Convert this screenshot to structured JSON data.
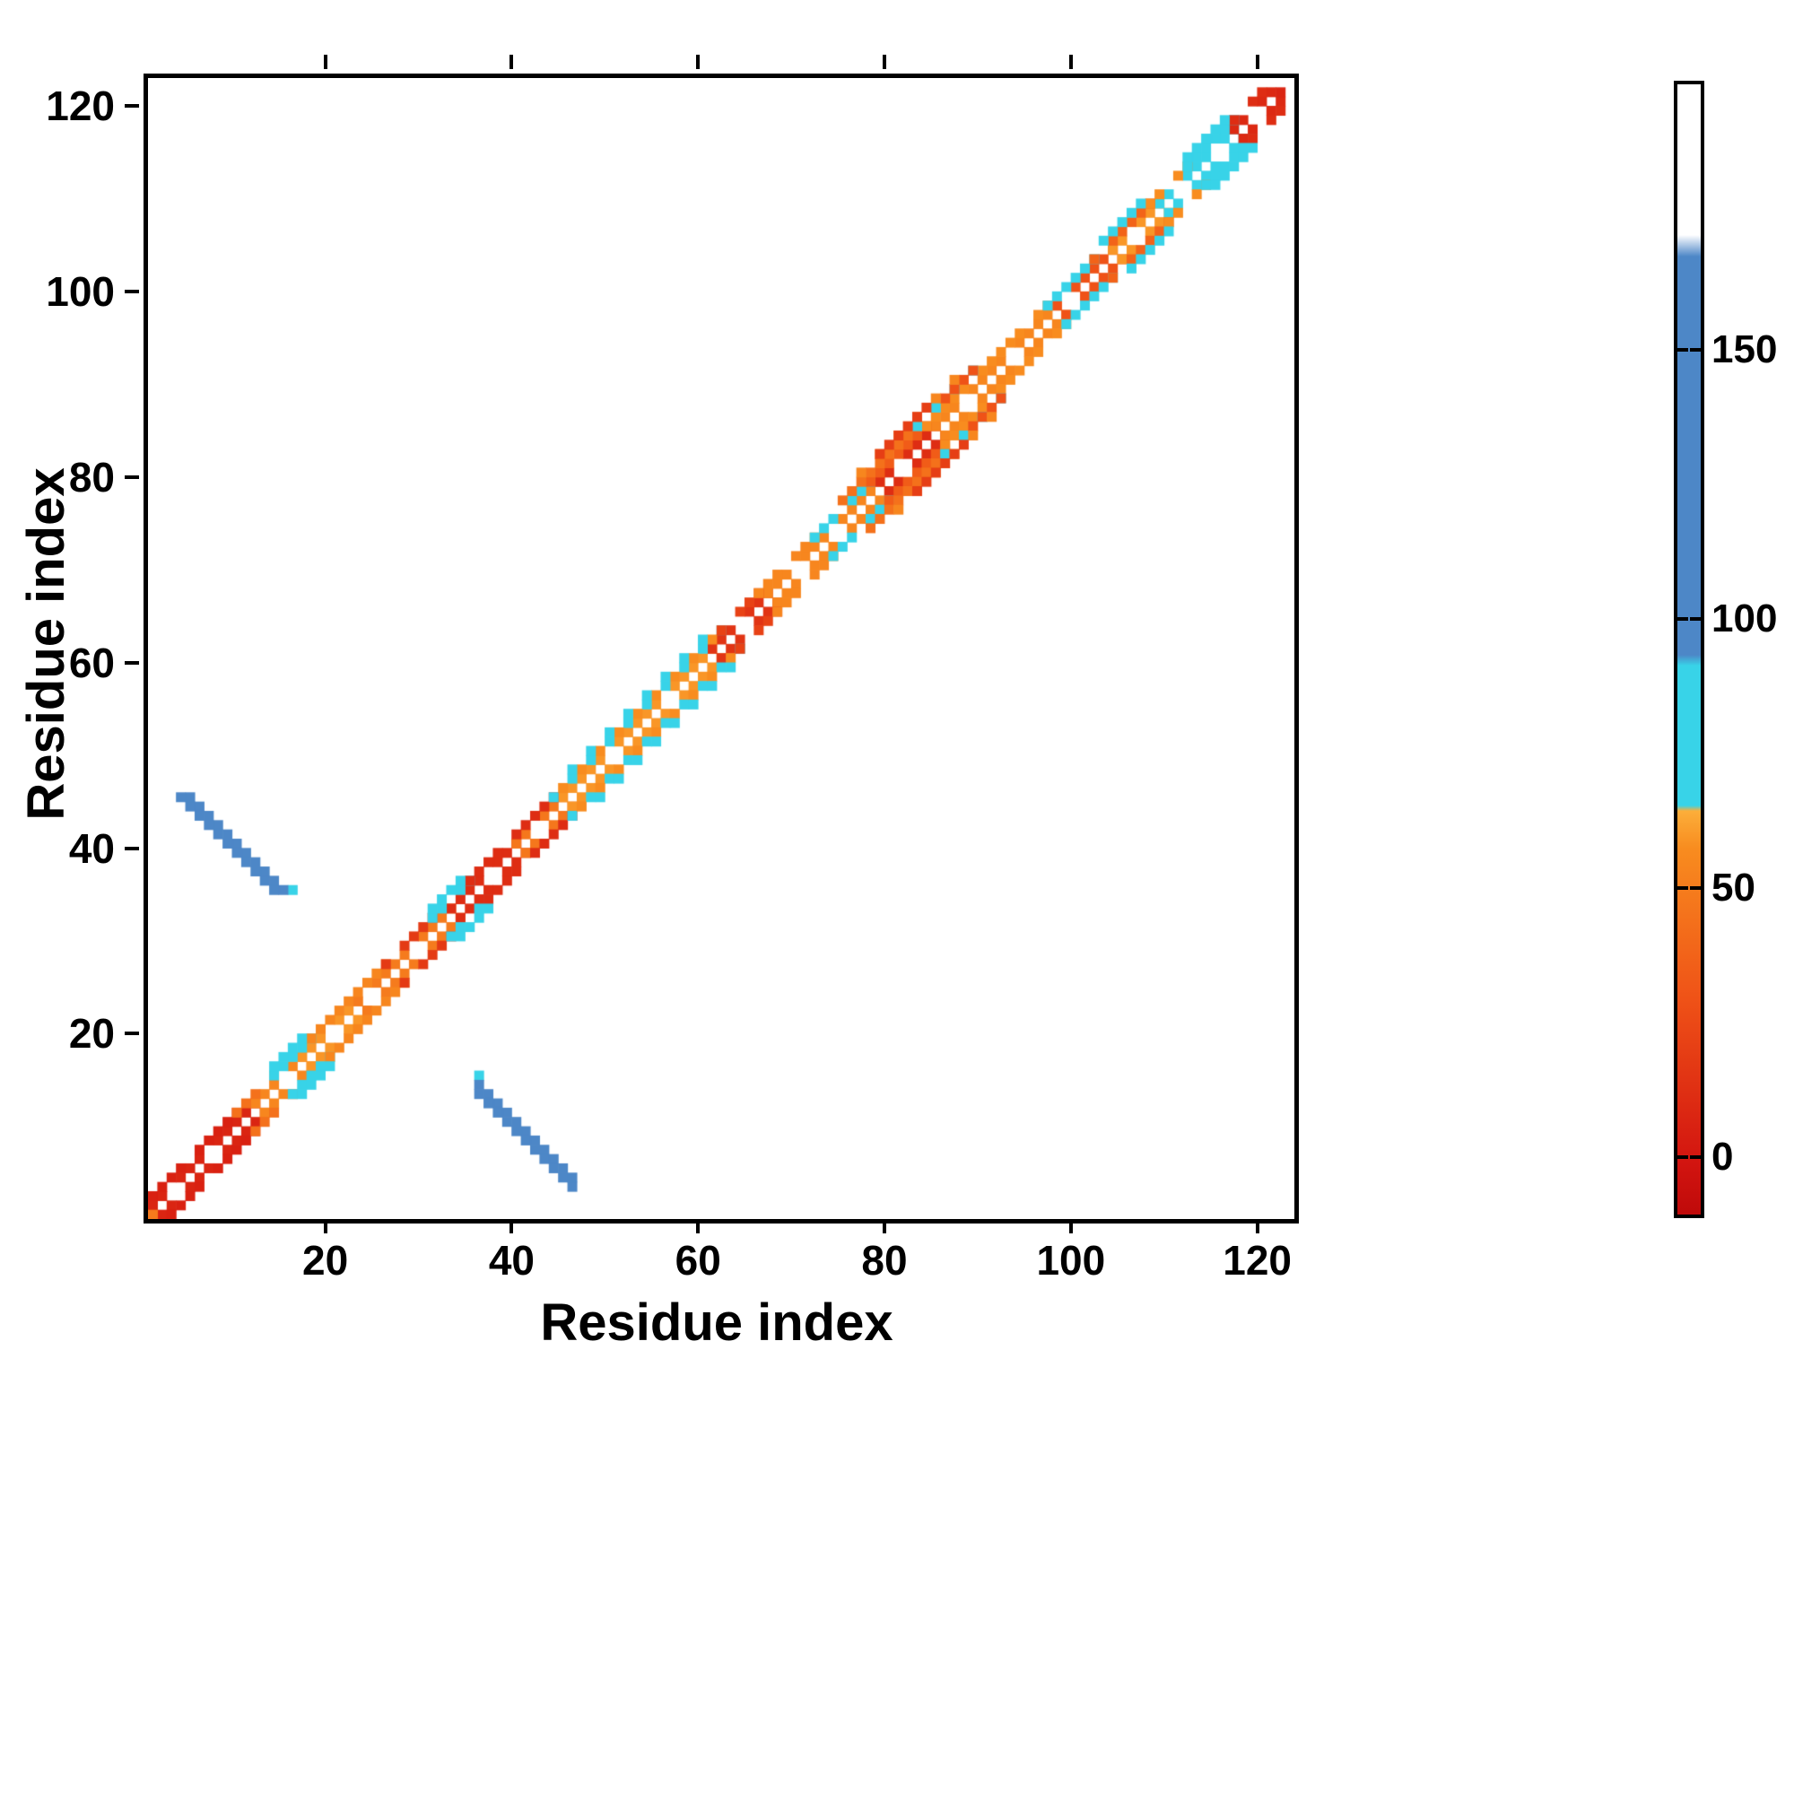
{
  "figure": {
    "background": "#ffffff",
    "xlabel": "Residue index",
    "ylabel": "Residue index"
  },
  "chart_data": {
    "type": "heatmap",
    "title": "",
    "xlabel": "Residue index",
    "ylabel": "Residue index",
    "axis_range": [
      0.5,
      123.5
    ],
    "x_ticks": [
      20,
      40,
      60,
      80,
      100,
      120
    ],
    "y_ticks": [
      20,
      40,
      60,
      80,
      100,
      120
    ],
    "grid": false,
    "legend": "colorbar-right",
    "colorbar": {
      "ticks": [
        0,
        50,
        100,
        150
      ],
      "vmin": -10,
      "vmax": 200,
      "stops": [
        [
          -10,
          "#bf0a0a"
        ],
        [
          0,
          "#d31510"
        ],
        [
          30,
          "#ef5217"
        ],
        [
          58,
          "#f88c1f"
        ],
        [
          65,
          "#fcae3a"
        ],
        [
          66,
          "#38d3e8"
        ],
        [
          92,
          "#38d3e8"
        ],
        [
          94,
          "#4d87c7"
        ],
        [
          168,
          "#4d87c7"
        ],
        [
          172,
          "#ffffff"
        ],
        [
          200,
          "#ffffff"
        ]
      ]
    },
    "diagonal_runs": {
      "1": [
        [
          1,
          12,
          8,
          1
        ],
        [
          12,
          17,
          55,
          1
        ],
        [
          17,
          23,
          60,
          1
        ],
        [
          23,
          33,
          50,
          1
        ],
        [
          33,
          40,
          12,
          1
        ],
        [
          40,
          45,
          48,
          1
        ],
        [
          45,
          61,
          60,
          1
        ],
        [
          61,
          67,
          15,
          1
        ],
        [
          67,
          79,
          55,
          1
        ],
        [
          79,
          85,
          12,
          1
        ],
        [
          85,
          98,
          55,
          1
        ],
        [
          98,
          104,
          30,
          1
        ],
        [
          104,
          109,
          60,
          1
        ],
        [
          109,
          117,
          80,
          1
        ],
        [
          117,
          122,
          10,
          1
        ]
      ],
      "2": [
        [
          1,
          10,
          6,
          1
        ],
        [
          10,
          14,
          45,
          1
        ],
        [
          14,
          18,
          80,
          1
        ],
        [
          18,
          26,
          55,
          1
        ],
        [
          26,
          31,
          18,
          1
        ],
        [
          31,
          35,
          80,
          1
        ],
        [
          35,
          44,
          12,
          1
        ],
        [
          44,
          62,
          80,
          2
        ],
        [
          45,
          61,
          58,
          2
        ],
        [
          62,
          66,
          22,
          1
        ],
        [
          66,
          72,
          55,
          1
        ],
        [
          72,
          78,
          80,
          1
        ],
        [
          78,
          84,
          35,
          1
        ],
        [
          84,
          97,
          58,
          1
        ],
        [
          97,
          102,
          80,
          1
        ],
        [
          102,
          108,
          38,
          1
        ],
        [
          108,
          112,
          58,
          1
        ],
        [
          112,
          117,
          80,
          1
        ],
        [
          117,
          121,
          12,
          1
        ]
      ],
      "3": [
        [
          14,
          17,
          82,
          1
        ],
        [
          31,
          34,
          82,
          1
        ],
        [
          46,
          60,
          82,
          2
        ],
        [
          75,
          83,
          45,
          1
        ],
        [
          83,
          90,
          82,
          2
        ],
        [
          86,
          89,
          30,
          1
        ],
        [
          103,
          107,
          82,
          1
        ],
        [
          112,
          116,
          82,
          1
        ]
      ],
      "4": [
        [
          77,
          87,
          55,
          2
        ],
        [
          79,
          84,
          20,
          1
        ]
      ]
    },
    "diagonal_holes": {
      "1": [
        3,
        7,
        15,
        20,
        24,
        29,
        37,
        42,
        50,
        56,
        64,
        70,
        74,
        81,
        88,
        93,
        99,
        106,
        111,
        115,
        119
      ],
      "2": [
        5,
        13,
        27,
        33,
        39,
        63,
        69,
        75,
        89,
        95,
        103,
        110,
        118
      ],
      "3": [],
      "4": []
    },
    "contacts": [
      [
        1,
        1,
        50
      ],
      [
        122,
        122,
        8
      ],
      [
        36,
        16,
        78
      ],
      [
        36,
        15,
        140
      ],
      [
        37,
        14,
        140
      ],
      [
        38,
        13,
        140
      ],
      [
        39,
        12,
        140
      ],
      [
        40,
        11,
        140
      ],
      [
        41,
        10,
        140
      ],
      [
        42,
        9,
        140
      ],
      [
        43,
        8,
        140
      ],
      [
        44,
        7,
        140
      ],
      [
        45,
        6,
        140
      ],
      [
        46,
        5,
        140
      ],
      [
        36,
        14,
        138
      ],
      [
        37,
        13,
        138
      ],
      [
        38,
        12,
        138
      ],
      [
        39,
        11,
        138
      ],
      [
        40,
        10,
        138
      ],
      [
        41,
        9,
        138
      ],
      [
        42,
        8,
        138
      ],
      [
        43,
        7,
        138
      ],
      [
        44,
        6,
        138
      ],
      [
        45,
        5,
        138
      ],
      [
        46,
        4,
        138
      ]
    ]
  }
}
